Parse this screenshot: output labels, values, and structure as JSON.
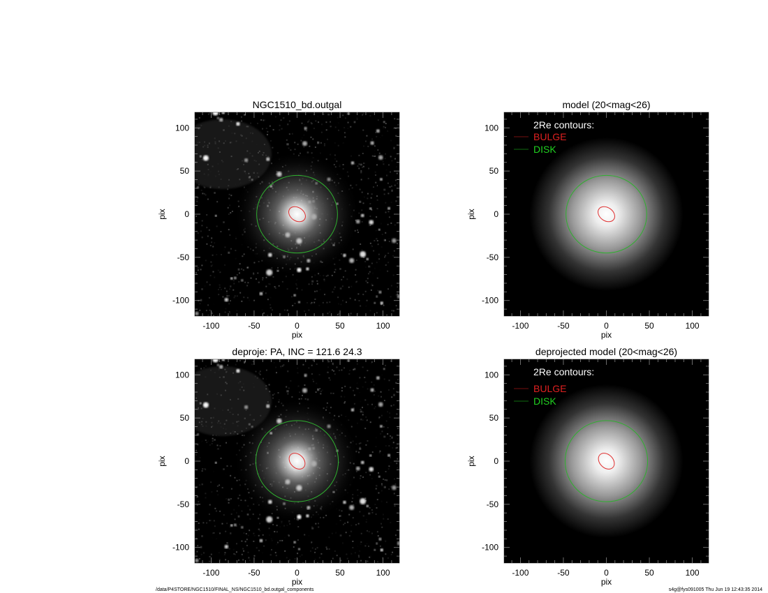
{
  "chart_data": [
    {
      "type": "heatmap",
      "title": "NGC1510_bd.outgal",
      "xlabel": "pix",
      "ylabel": "pix",
      "xlim": [
        -119,
        119
      ],
      "ylim": [
        -118,
        118
      ],
      "xticks": [
        "-100",
        "-50",
        "0",
        "50",
        "100"
      ],
      "yticks": [
        "100",
        "50",
        "0",
        "-50",
        "-100"
      ],
      "image": "observed",
      "contours": {
        "bulge": "#e03030",
        "disk": "#2fb02f"
      }
    },
    {
      "type": "heatmap",
      "title": "model (20<mag<26)",
      "xlabel": "pix",
      "ylabel": "pix",
      "xlim": [
        -119,
        119
      ],
      "ylim": [
        -118,
        118
      ],
      "xticks": [
        "-100",
        "-50",
        "0",
        "50",
        "100"
      ],
      "yticks": [
        "100",
        "50",
        "0",
        "-50",
        "-100"
      ],
      "image": "model",
      "legend": {
        "heading": "2Re contours:",
        "entries": [
          {
            "label": "BULGE",
            "color": "#e02020"
          },
          {
            "label": "DISK",
            "color": "#20d020"
          }
        ]
      },
      "contours": {
        "bulge": "#e03030",
        "disk": "#2fb02f"
      }
    },
    {
      "type": "heatmap",
      "title": "deproje: PA, INC = 121.6    24.3",
      "xlabel": "pix",
      "ylabel": "pix",
      "xlim": [
        -119,
        119
      ],
      "ylim": [
        -118,
        118
      ],
      "xticks": [
        "-100",
        "-50",
        "0",
        "50",
        "100"
      ],
      "yticks": [
        "100",
        "50",
        "0",
        "-50",
        "-100"
      ],
      "image": "observed",
      "contours": {
        "bulge": "#e03030",
        "disk": "#2fb02f"
      }
    },
    {
      "type": "heatmap",
      "title": "deprojected model (20<mag<26)",
      "xlabel": "pix",
      "ylabel": "pix",
      "xlim": [
        -119,
        119
      ],
      "ylim": [
        -118,
        118
      ],
      "xticks": [
        "-100",
        "-50",
        "0",
        "50",
        "100"
      ],
      "yticks": [
        "100",
        "50",
        "0",
        "-50",
        "-100"
      ],
      "image": "model",
      "legend": {
        "heading": "2Re contours:",
        "entries": [
          {
            "label": "BULGE",
            "color": "#e02020"
          },
          {
            "label": "DISK",
            "color": "#20d020"
          }
        ]
      },
      "contours": {
        "bulge": "#e03030",
        "disk": "#2fb02f"
      }
    }
  ],
  "footer": {
    "path": "/data/P4STORE/NGC1510/FINAL_NS/NGC1510_bd.outgal_components",
    "stamp": "s4g@fys091005  Thu Jun 19 12:43:35 2014"
  }
}
